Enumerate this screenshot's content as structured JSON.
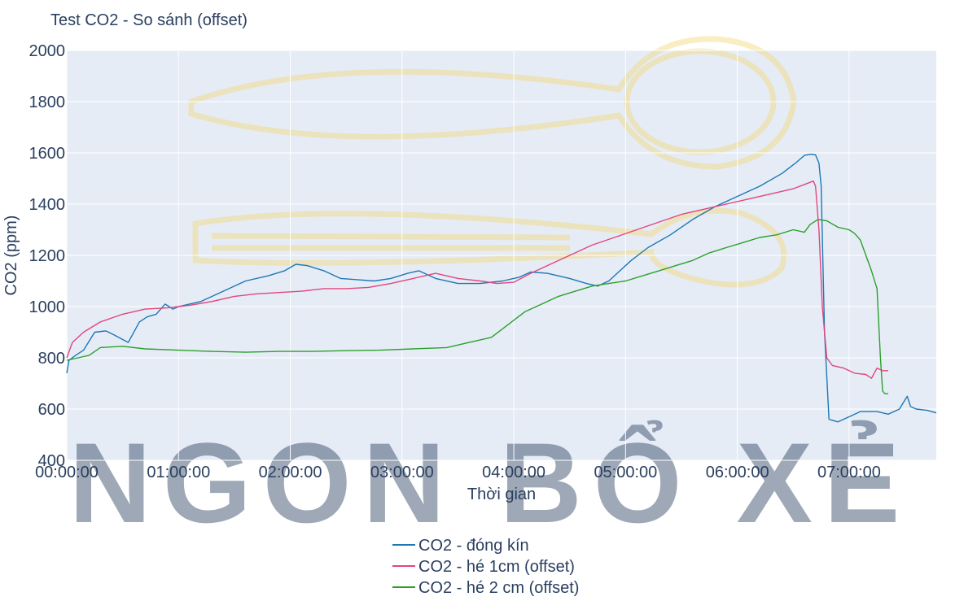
{
  "watermark": {
    "text": "NGON BỔ XẺ",
    "color": "#f3d97a"
  },
  "chart_data": {
    "type": "line",
    "title": "Test CO2 - So sánh (offset)",
    "xlabel": "Thời gian",
    "ylabel": "CO2 (ppm)",
    "x_unit": "hours",
    "xlim": [
      0,
      7.78
    ],
    "ylim": [
      400,
      2000
    ],
    "x_ticks": [
      0,
      1,
      2,
      3,
      4,
      5,
      6,
      7
    ],
    "x_tick_labels": [
      "00:00:00",
      "01:00:00",
      "02:00:00",
      "03:00:00",
      "04:00:00",
      "05:00:00",
      "06:00:00",
      "07:00:00"
    ],
    "y_ticks": [
      400,
      600,
      800,
      1000,
      1200,
      1400,
      1600,
      1800,
      2000
    ],
    "y_tick_labels": [
      "400",
      "600",
      "800",
      "1000",
      "1200",
      "1400",
      "1600",
      "1800",
      "2000"
    ],
    "grid": true,
    "background_color": "#e5ecf6",
    "legend_position": "bottom-center",
    "series": [
      {
        "name": "CO2 - đóng kín",
        "color": "#1f77b4",
        "x": [
          0,
          0.02,
          0.08,
          0.15,
          0.25,
          0.35,
          0.42,
          0.55,
          0.65,
          0.72,
          0.8,
          0.88,
          0.95,
          1.0,
          1.05,
          1.2,
          1.4,
          1.6,
          1.8,
          1.95,
          2.05,
          2.15,
          2.3,
          2.45,
          2.6,
          2.75,
          2.9,
          3.05,
          3.15,
          3.3,
          3.5,
          3.7,
          3.9,
          4.05,
          4.15,
          4.3,
          4.5,
          4.65,
          4.75,
          4.85,
          4.95,
          5.05,
          5.2,
          5.4,
          5.6,
          5.8,
          6.0,
          6.2,
          6.4,
          6.52,
          6.6,
          6.66,
          6.7,
          6.73,
          6.75,
          6.78,
          6.82,
          6.9,
          7.0,
          7.1,
          7.25,
          7.35,
          7.45,
          7.52,
          7.55,
          7.6,
          7.7,
          7.78
        ],
        "values": [
          740,
          790,
          810,
          830,
          900,
          905,
          890,
          860,
          940,
          960,
          970,
          1010,
          990,
          1000,
          1005,
          1020,
          1060,
          1100,
          1120,
          1140,
          1165,
          1160,
          1140,
          1110,
          1105,
          1100,
          1110,
          1130,
          1140,
          1110,
          1090,
          1090,
          1100,
          1115,
          1135,
          1130,
          1110,
          1090,
          1080,
          1100,
          1140,
          1180,
          1230,
          1280,
          1340,
          1390,
          1430,
          1470,
          1520,
          1560,
          1590,
          1595,
          1592,
          1560,
          1470,
          900,
          560,
          550,
          570,
          590,
          590,
          580,
          600,
          650,
          610,
          600,
          595,
          585
        ]
      },
      {
        "name": "CO2 - hé 1cm (offset)",
        "color": "#e2457f",
        "x": [
          0,
          0.05,
          0.15,
          0.3,
          0.5,
          0.7,
          0.9,
          1.1,
          1.3,
          1.5,
          1.7,
          1.9,
          2.1,
          2.3,
          2.5,
          2.7,
          2.9,
          3.1,
          3.3,
          3.5,
          3.7,
          3.85,
          4.0,
          4.15,
          4.3,
          4.5,
          4.7,
          4.9,
          5.1,
          5.3,
          5.5,
          5.7,
          5.9,
          6.1,
          6.3,
          6.5,
          6.62,
          6.68,
          6.7,
          6.73,
          6.76,
          6.8,
          6.85,
          6.95,
          7.05,
          7.15,
          7.2,
          7.25,
          7.3,
          7.35
        ],
        "values": [
          800,
          860,
          900,
          940,
          970,
          990,
          995,
          1005,
          1020,
          1040,
          1050,
          1055,
          1060,
          1070,
          1070,
          1075,
          1090,
          1110,
          1130,
          1110,
          1100,
          1090,
          1095,
          1130,
          1160,
          1200,
          1240,
          1270,
          1300,
          1330,
          1360,
          1380,
          1400,
          1420,
          1440,
          1460,
          1480,
          1490,
          1470,
          1300,
          1000,
          800,
          770,
          760,
          740,
          735,
          720,
          760,
          750,
          750
        ]
      },
      {
        "name": "CO2 - hé 2 cm (offset)",
        "color": "#2ca02c",
        "x": [
          0,
          0.1,
          0.2,
          0.3,
          0.5,
          0.7,
          1.0,
          1.3,
          1.6,
          1.9,
          2.2,
          2.5,
          2.8,
          3.1,
          3.4,
          3.6,
          3.8,
          3.95,
          4.1,
          4.25,
          4.4,
          4.55,
          4.7,
          4.85,
          5.0,
          5.15,
          5.3,
          5.45,
          5.6,
          5.75,
          5.9,
          6.05,
          6.2,
          6.35,
          6.5,
          6.6,
          6.65,
          6.72,
          6.8,
          6.9,
          7.0,
          7.05,
          7.1,
          7.2,
          7.25,
          7.28,
          7.3,
          7.32,
          7.35
        ],
        "values": [
          790,
          800,
          810,
          840,
          845,
          835,
          830,
          825,
          822,
          825,
          825,
          828,
          830,
          835,
          840,
          860,
          880,
          930,
          980,
          1010,
          1040,
          1060,
          1080,
          1090,
          1100,
          1120,
          1140,
          1160,
          1180,
          1210,
          1230,
          1250,
          1270,
          1280,
          1300,
          1290,
          1320,
          1340,
          1335,
          1310,
          1300,
          1285,
          1260,
          1140,
          1070,
          800,
          670,
          660,
          660
        ]
      }
    ]
  }
}
